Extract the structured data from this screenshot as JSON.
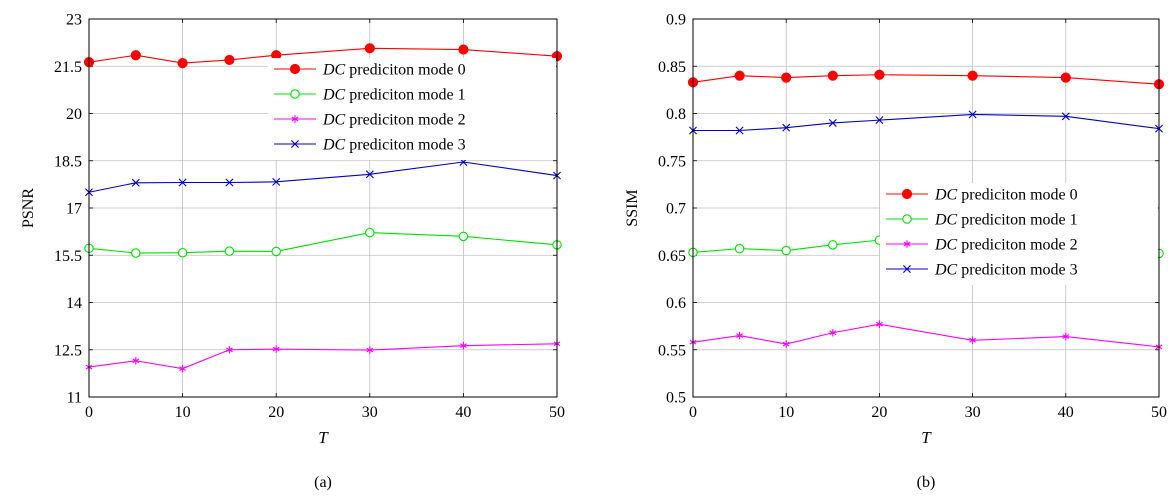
{
  "chart_data": [
    {
      "type": "line",
      "panel": "(a)",
      "xlabel": "T",
      "ylabel": "PSNR",
      "x": [
        0,
        5,
        10,
        15,
        20,
        30,
        40,
        50
      ],
      "xticks": [
        0,
        10,
        20,
        30,
        40,
        50
      ],
      "yticks": [
        11,
        12.5,
        14,
        15.5,
        17,
        18.5,
        20,
        21.5,
        23
      ],
      "xlim": [
        0,
        50
      ],
      "ylim": [
        11,
        23
      ],
      "grid": true,
      "legend_position": "upper-right",
      "series": [
        {
          "name_em": "DC",
          "name_rest": " prediciton mode 0",
          "color": "#ff0000",
          "marker": "filled-circle",
          "values": [
            21.63,
            21.85,
            21.6,
            21.7,
            21.85,
            22.07,
            22.03,
            21.82
          ]
        },
        {
          "name_em": "DC",
          "name_rest": " prediciton mode 1",
          "color": "#00e000",
          "marker": "open-circle",
          "values": [
            15.72,
            15.57,
            15.58,
            15.63,
            15.62,
            16.22,
            16.1,
            15.83
          ]
        },
        {
          "name_em": "DC",
          "name_rest": " prediciton mode 2",
          "color": "#ff00ff",
          "marker": "asterisk",
          "values": [
            11.95,
            12.15,
            11.9,
            12.5,
            12.52,
            12.49,
            12.63,
            12.69
          ]
        },
        {
          "name_em": "DC",
          "name_rest": " prediciton mode 3",
          "color": "#0000cc",
          "marker": "cross",
          "values": [
            17.5,
            17.8,
            17.81,
            17.81,
            17.83,
            18.07,
            18.46,
            18.03
          ]
        }
      ]
    },
    {
      "type": "line",
      "panel": "(b)",
      "xlabel": "T",
      "ylabel": "SSIM",
      "x": [
        0,
        5,
        10,
        15,
        20,
        30,
        40,
        50
      ],
      "xticks": [
        0,
        10,
        20,
        30,
        40,
        50
      ],
      "yticks": [
        0.5,
        0.55,
        0.6,
        0.65,
        0.7,
        0.75,
        0.8,
        0.85,
        0.9
      ],
      "xlim": [
        0,
        50
      ],
      "ylim": [
        0.5,
        0.9
      ],
      "grid": true,
      "legend_position": "center-right",
      "series": [
        {
          "name_em": "DC",
          "name_rest": " prediciton mode 0",
          "color": "#ff0000",
          "marker": "filled-circle",
          "values": [
            0.833,
            0.84,
            0.838,
            0.84,
            0.841,
            0.84,
            0.838,
            0.831
          ]
        },
        {
          "name_em": "DC",
          "name_rest": " prediciton mode 1",
          "color": "#00e000",
          "marker": "open-circle",
          "values": [
            0.653,
            0.657,
            0.655,
            0.661,
            0.666,
            0.663,
            0.66,
            0.652
          ]
        },
        {
          "name_em": "DC",
          "name_rest": " prediciton mode 2",
          "color": "#ff00ff",
          "marker": "asterisk",
          "values": [
            0.558,
            0.565,
            0.556,
            0.568,
            0.577,
            0.56,
            0.564,
            0.553
          ]
        },
        {
          "name_em": "DC",
          "name_rest": " prediciton mode 3",
          "color": "#0000cc",
          "marker": "cross",
          "values": [
            0.782,
            0.782,
            0.785,
            0.79,
            0.793,
            0.799,
            0.797,
            0.784
          ]
        }
      ]
    }
  ]
}
